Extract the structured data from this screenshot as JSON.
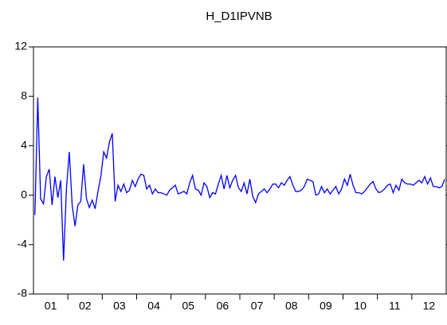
{
  "chart_data": {
    "type": "line",
    "title": "H_D1IPVNB",
    "categories": [
      null,
      null,
      null,
      null,
      null,
      null,
      "01",
      null,
      null,
      null,
      null,
      null,
      null,
      null,
      null,
      null,
      null,
      null,
      "02",
      null,
      null,
      null,
      null,
      null,
      null,
      null,
      null,
      null,
      null,
      null,
      "03",
      null,
      null,
      null,
      null,
      null,
      null,
      null,
      null,
      null,
      null,
      null,
      "04",
      null,
      null,
      null,
      null,
      null,
      null,
      null,
      null,
      null,
      null,
      null,
      "05",
      null,
      null,
      null,
      null,
      null,
      null,
      null,
      null,
      null,
      null,
      null,
      "06",
      null,
      null,
      null,
      null,
      null,
      null,
      null,
      null,
      null,
      null,
      null,
      "07",
      null,
      null,
      null,
      null,
      null,
      null,
      null,
      null,
      null,
      null,
      null,
      "08",
      null,
      null,
      null,
      null,
      null,
      null,
      null,
      null,
      null,
      null,
      null,
      "09",
      null,
      null,
      null,
      null,
      null,
      null,
      null,
      null,
      null,
      null,
      null,
      "10",
      null,
      null,
      null,
      null,
      null,
      null,
      null,
      null,
      null,
      null,
      null,
      "11",
      null,
      null,
      null,
      null,
      null,
      null,
      null,
      null,
      null,
      null,
      null,
      "12",
      null,
      null,
      null,
      null,
      null
    ],
    "series": [
      {
        "color": "#0000ff",
        "values": [
          -1.6,
          7.9,
          -0.3,
          -0.7,
          1.5,
          2.1,
          -0.8,
          1.5,
          -0.2,
          1.2,
          -5.3,
          0.5,
          3.5,
          -0.8,
          -2.5,
          -0.8,
          -0.5,
          2.5,
          -0.3,
          -1.0,
          -0.4,
          -1.1,
          0.3,
          1.5,
          3.5,
          3.0,
          4.3,
          5.0,
          -0.5,
          0.8,
          0.3,
          0.9,
          0.2,
          0.4,
          1.2,
          0.7,
          1.3,
          1.7,
          1.6,
          0.5,
          0.8,
          0.1,
          0.5,
          0.2,
          0.2,
          0.1,
          0.0,
          0.4,
          0.6,
          0.8,
          0.1,
          0.2,
          0.3,
          0.1,
          1.0,
          1.6,
          0.5,
          0.4,
          0.0,
          1.0,
          0.7,
          -0.2,
          0.2,
          0.1,
          0.9,
          1.6,
          0.5,
          1.6,
          0.6,
          1.2,
          1.6,
          0.6,
          0.3,
          1.0,
          0.1,
          1.3,
          -0.1,
          -0.6,
          0.1,
          0.3,
          0.5,
          0.2,
          0.5,
          0.9,
          0.9,
          0.6,
          1.0,
          0.8,
          1.2,
          1.5,
          0.8,
          0.3,
          0.3,
          0.4,
          0.7,
          1.3,
          1.2,
          1.1,
          0.0,
          0.1,
          0.7,
          0.2,
          0.5,
          0.1,
          0.4,
          0.7,
          0.1,
          0.5,
          1.3,
          0.8,
          1.7,
          0.8,
          0.2,
          0.2,
          0.1,
          0.3,
          0.6,
          0.9,
          1.1,
          0.5,
          0.2,
          0.3,
          0.5,
          0.8,
          0.9,
          0.2,
          0.8,
          0.4,
          1.3,
          1.0,
          0.9,
          0.9,
          0.8,
          1.0,
          1.2,
          1.0,
          1.5,
          0.9,
          1.4,
          0.7,
          0.7,
          0.6,
          0.7,
          1.3
        ]
      }
    ],
    "ylim": [
      -8,
      12
    ],
    "yticks": [
      -8,
      -4,
      0,
      4,
      8,
      12
    ]
  }
}
